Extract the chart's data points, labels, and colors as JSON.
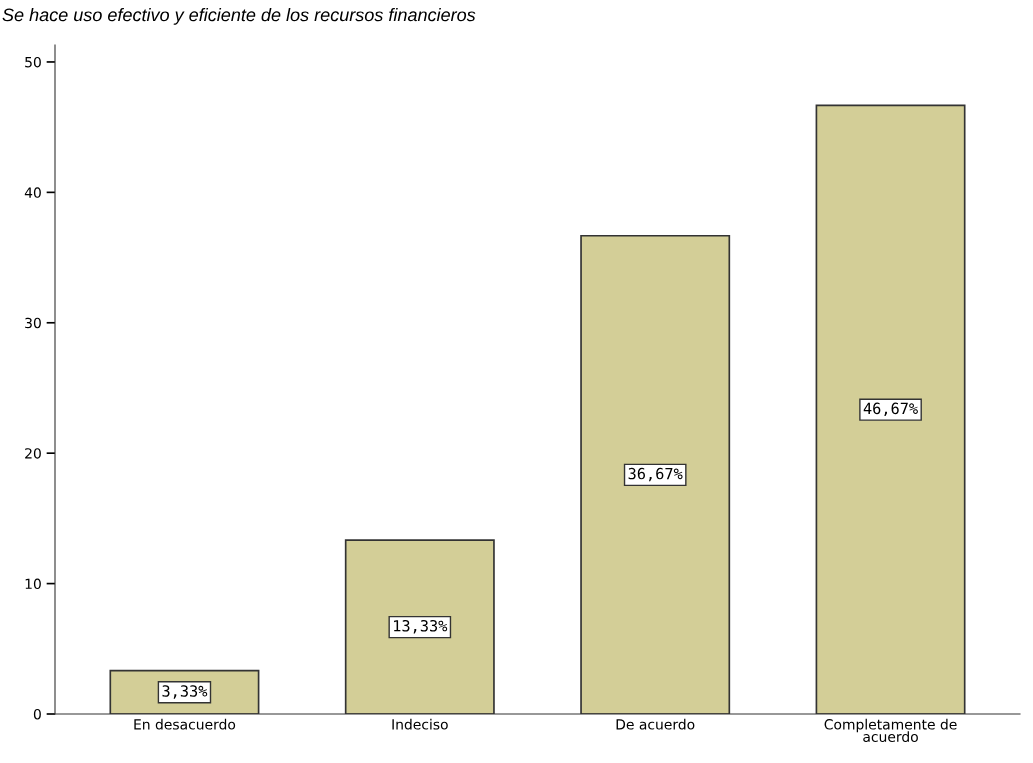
{
  "chart_data": {
    "type": "bar",
    "title": "Se hace uso efectivo y eficiente de los recursos financieros",
    "categories": [
      "En desacuerdo",
      "Indeciso",
      "De acuerdo",
      "Completamente de\nacuerdo"
    ],
    "values": [
      3.33,
      13.33,
      36.67,
      46.67
    ],
    "value_labels": [
      "3,33%",
      "13,33%",
      "36,67%",
      "46,67%"
    ],
    "color": "#d3ce97",
    "ylim": [
      0,
      51.3
    ],
    "yticks": [
      0,
      10,
      20,
      30,
      40,
      50
    ],
    "grid": false
  }
}
